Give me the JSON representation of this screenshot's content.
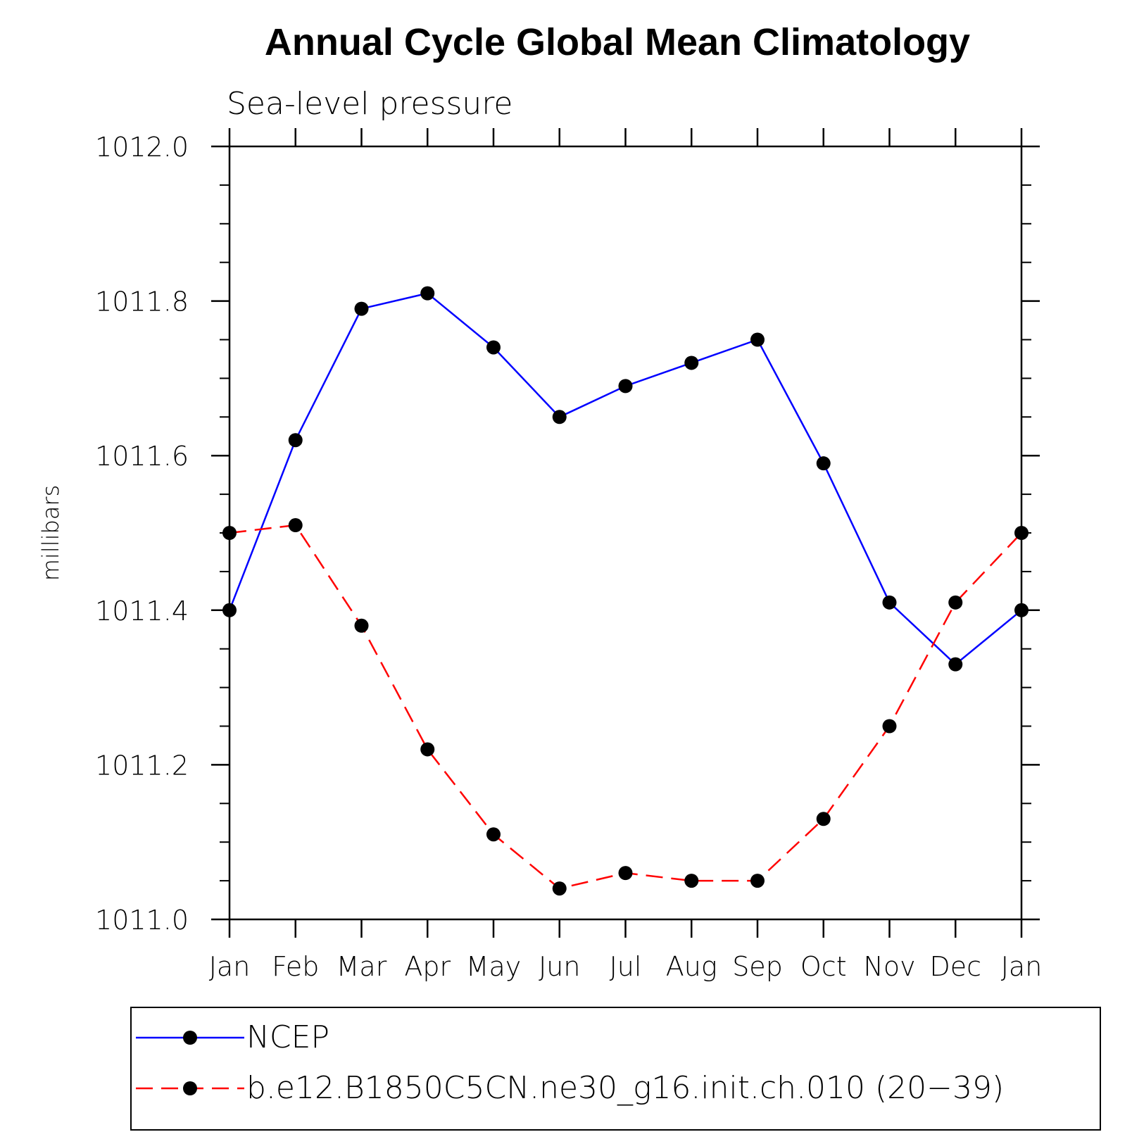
{
  "chart_data": {
    "type": "line",
    "title": "Annual Cycle Global Mean Climatology",
    "subtitle": "Sea-level pressure",
    "xlabel": "",
    "ylabel": "millibars",
    "categories": [
      "Jan",
      "Feb",
      "Mar",
      "Apr",
      "May",
      "Jun",
      "Jul",
      "Aug",
      "Sep",
      "Oct",
      "Nov",
      "Dec",
      "Jan"
    ],
    "ylim": [
      1011.0,
      1012.0
    ],
    "y_ticks": [
      "1011.0",
      "1011.2",
      "1011.4",
      "1011.6",
      "1011.8",
      "1012.0"
    ],
    "y_tick_values": [
      1011.0,
      1011.2,
      1011.4,
      1011.6,
      1011.8,
      1012.0
    ],
    "y_minor_step": 0.05,
    "grid": false,
    "legend_position": "bottom",
    "series": [
      {
        "name": "NCEP",
        "color": "#0000ff",
        "line_style": "solid",
        "marker": "filled-circle",
        "values": [
          1011.4,
          1011.62,
          1011.79,
          1011.81,
          1011.74,
          1011.65,
          1011.69,
          1011.72,
          1011.75,
          1011.59,
          1011.41,
          1011.33,
          1011.4
        ]
      },
      {
        "name": "b.e12.B1850C5CN.ne30_g16.init.ch.010 (20−39)",
        "color": "#ff0000",
        "line_style": "dashed",
        "marker": "filled-circle",
        "values": [
          1011.5,
          1011.51,
          1011.38,
          1011.22,
          1011.11,
          1011.04,
          1011.06,
          1011.05,
          1011.05,
          1011.13,
          1011.25,
          1011.41,
          1011.5
        ]
      }
    ]
  }
}
